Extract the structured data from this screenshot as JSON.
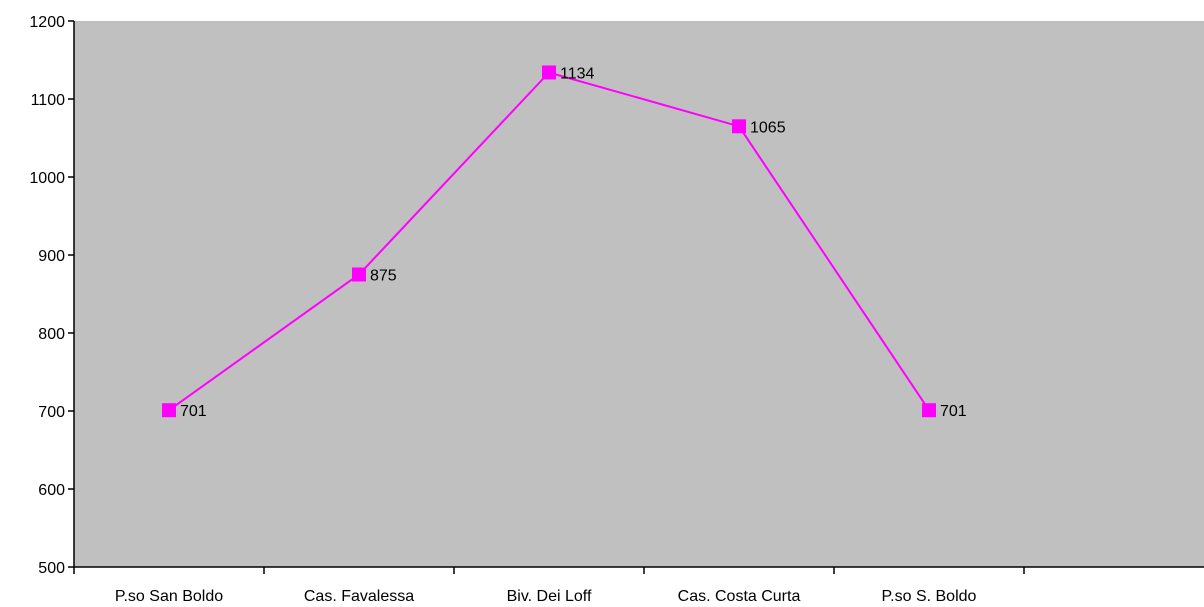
{
  "chart_data": {
    "type": "line",
    "title": "",
    "xlabel": "",
    "ylabel": "",
    "categories": [
      "P.so San Boldo",
      "Cas. Favalessa",
      "Biv. Dei Loff",
      "Cas. Costa Curta",
      "P.so S. Boldo"
    ],
    "series": [
      {
        "values": [
          701,
          875,
          1134,
          1065,
          701
        ],
        "color": "#ff00ff"
      }
    ],
    "ylim": [
      500,
      1200
    ],
    "yticks": [
      500,
      600,
      700,
      800,
      900,
      1000,
      1100,
      1200
    ],
    "grid": false,
    "legend": "none",
    "plot_background": "#c0c0c0",
    "data_labels": true
  }
}
